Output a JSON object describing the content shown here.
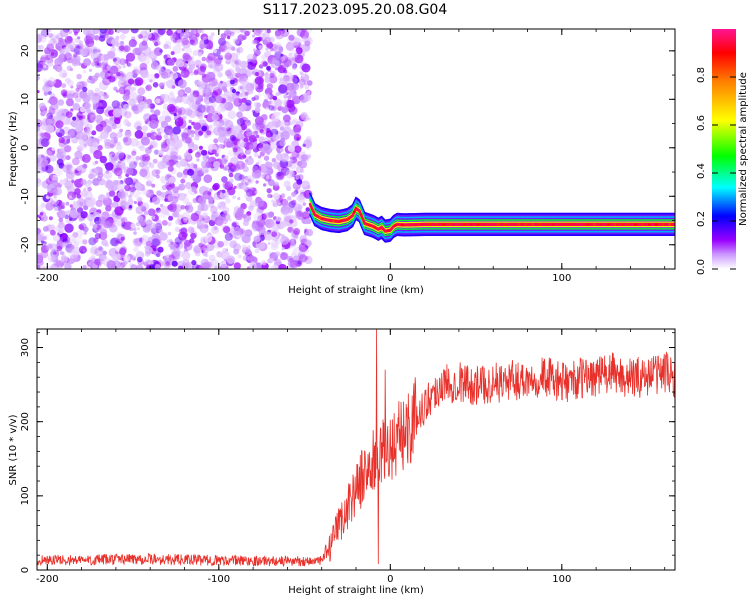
{
  "title": "S117.2023.095.20.08.G04",
  "chart_data": [
    {
      "type": "heatmap",
      "name": "spectrogram",
      "xlabel": "Height of straight line (km)",
      "ylabel": "Frequency (Hz)",
      "xlim": [
        -206,
        166
      ],
      "ylim": [
        -25,
        24.5
      ],
      "xticks": [
        "-200",
        "-100",
        "0",
        "100"
      ],
      "xtick_values": [
        -200,
        -100,
        0,
        100
      ],
      "yticks": [
        "20",
        "10",
        "0",
        "-10",
        "-20"
      ],
      "ytick_values": [
        20,
        10,
        0,
        -10,
        -20
      ],
      "colorbar": {
        "label": "Normalized spectral amplitude",
        "range": [
          0,
          1
        ],
        "ticks": [
          "0.0",
          "0.2",
          "0.4",
          "0.6",
          "0.8"
        ],
        "tick_values": [
          0.0,
          0.2,
          0.4,
          0.6,
          0.8
        ],
        "colormap": "white-purple-blue-cyan-green-yellow-orange-red-magenta"
      },
      "noise_region": {
        "x": [
          -206,
          -47
        ],
        "y": [
          -25,
          24.5
        ]
      },
      "carrier_track": {
        "x": [
          -47,
          -44,
          -40,
          -35,
          -30,
          -25,
          -22,
          -20,
          -18,
          -15,
          -10,
          -7,
          -5,
          -3,
          0,
          2,
          4,
          8,
          20,
          40,
          60,
          80,
          100,
          120,
          140,
          166
        ],
        "y": [
          -11.5,
          -13.8,
          -14.6,
          -15.0,
          -15.2,
          -14.8,
          -14.0,
          -12.5,
          -13.0,
          -15.6,
          -16.2,
          -16.8,
          -16.4,
          -17.2,
          -17.0,
          -16.2,
          -15.8,
          -15.9,
          -15.8,
          -15.8,
          -15.8,
          -15.8,
          -15.8,
          -15.8,
          -15.8,
          -15.8
        ],
        "peak_amplitude": 0.95
      }
    },
    {
      "type": "line",
      "name": "snr",
      "xlabel": "Height of straight line (km)",
      "ylabel": "SNR (10 * v/v)",
      "xlim": [
        -206,
        166
      ],
      "ylim": [
        0,
        325
      ],
      "xticks": [
        "-200",
        "-100",
        "0",
        "100"
      ],
      "xtick_values": [
        -200,
        -100,
        0,
        100
      ],
      "yticks": [
        "0",
        "100",
        "200",
        "300"
      ],
      "ytick_values": [
        0,
        100,
        200,
        300
      ],
      "color": "#e8312b",
      "series_trend": {
        "x": [
          -206,
          -180,
          -150,
          -100,
          -60,
          -40,
          -35,
          -30,
          -25,
          -20,
          -15,
          -10,
          -5,
          0,
          5,
          10,
          15,
          20,
          25,
          30,
          40,
          50,
          60,
          70,
          80,
          90,
          100,
          110,
          120,
          130,
          140,
          150,
          160,
          166
        ],
        "y": [
          14,
          13,
          15,
          13,
          12,
          12,
          30,
          60,
          85,
          110,
          130,
          145,
          155,
          165,
          178,
          192,
          205,
          222,
          238,
          250,
          255,
          248,
          252,
          255,
          258,
          262,
          252,
          258,
          262,
          265,
          258,
          262,
          268,
          260
        ]
      },
      "spikes": [
        {
          "x": -8,
          "y": 325
        },
        {
          "x": -7,
          "y": 8
        },
        {
          "x": -3,
          "y": 270
        }
      ]
    }
  ]
}
